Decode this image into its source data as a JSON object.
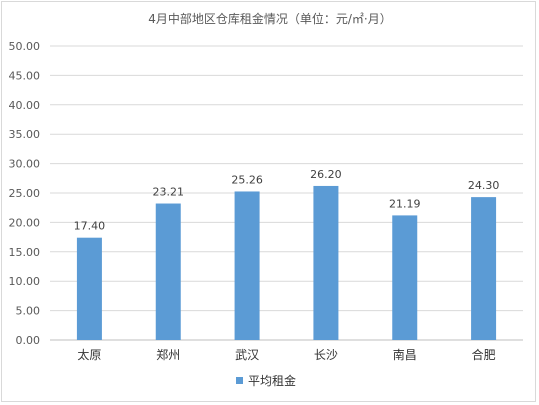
{
  "chart_data": {
    "type": "bar",
    "title": "4月中部地区仓库租金情况（单位：元/㎡·月）",
    "categories": [
      "太原",
      "郑州",
      "武汉",
      "长沙",
      "南昌",
      "合肥"
    ],
    "series": [
      {
        "name": "平均租金",
        "values": [
          17.4,
          23.21,
          25.26,
          26.2,
          21.19,
          24.3
        ],
        "value_labels": [
          "17.40",
          "23.21",
          "25.26",
          "26.20",
          "21.19",
          "24.30"
        ],
        "color": "#5b9bd5"
      }
    ],
    "ylim": [
      0,
      50
    ],
    "yticks": [
      "0.00",
      "5.00",
      "10.00",
      "15.00",
      "20.00",
      "25.00",
      "30.00",
      "35.00",
      "40.00",
      "45.00",
      "50.00"
    ],
    "grid": true,
    "legend_position": "bottom",
    "xlabel": "",
    "ylabel": ""
  }
}
